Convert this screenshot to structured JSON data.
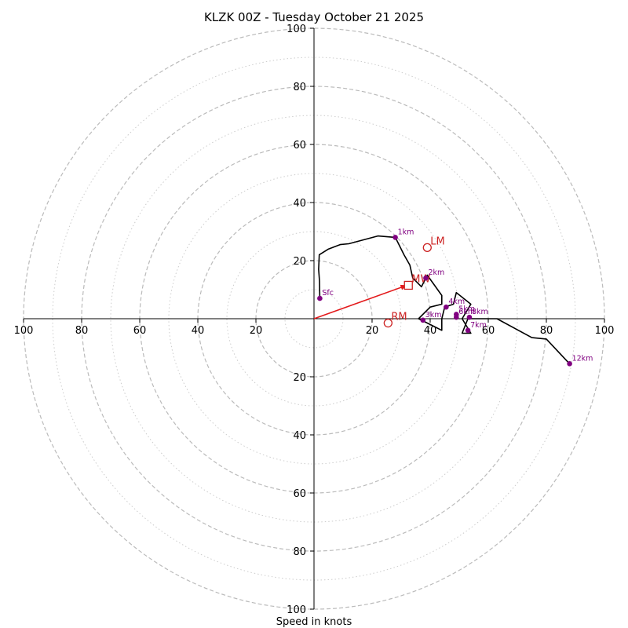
{
  "chart_data": {
    "type": "hodograph",
    "title": "KLZK 00Z - Tuesday October 21 2025",
    "xlabel": "Speed in knots",
    "units": "knots",
    "axis_range": [
      -100,
      100
    ],
    "x_tick_labels": [
      "100",
      "80",
      "60",
      "40",
      "20",
      "20",
      "40",
      "60",
      "80",
      "100"
    ],
    "x_tick_values": [
      -100,
      -80,
      -60,
      -40,
      -20,
      20,
      40,
      60,
      80,
      100
    ],
    "y_tick_labels": [
      "100",
      "80",
      "60",
      "40",
      "20",
      "20",
      "40",
      "60",
      "80",
      "100"
    ],
    "y_tick_values": [
      100,
      80,
      60,
      40,
      20,
      -20,
      -40,
      -60,
      -80,
      -100
    ],
    "rings_major": [
      20,
      40,
      60,
      80,
      100
    ],
    "rings_minor": [
      10,
      30,
      50,
      70,
      90
    ],
    "colors": {
      "trace": "#000000",
      "height_marker": "#800080",
      "motion": "#cc2222",
      "grid": "#bbbbbb",
      "shear_vector": "#e31a1c"
    },
    "trace": [
      [
        2,
        7
      ],
      [
        1.9,
        13
      ],
      [
        1.6,
        17
      ],
      [
        1.8,
        22
      ],
      [
        5,
        24
      ],
      [
        9,
        25.5
      ],
      [
        12,
        25.8
      ],
      [
        22,
        28.5
      ],
      [
        28,
        28
      ],
      [
        31,
        22
      ],
      [
        33,
        18.5
      ],
      [
        34,
        14
      ],
      [
        37,
        11
      ],
      [
        39,
        15
      ],
      [
        44,
        8
      ],
      [
        44,
        5
      ],
      [
        40,
        4
      ],
      [
        36,
        0
      ],
      [
        40,
        -2
      ],
      [
        44,
        -4
      ],
      [
        44,
        0
      ],
      [
        45,
        4
      ],
      [
        48,
        5
      ],
      [
        49,
        9
      ],
      [
        54,
        5
      ],
      [
        51,
        0
      ],
      [
        54,
        -5
      ],
      [
        51,
        -5
      ],
      [
        53,
        0
      ],
      [
        57,
        0
      ],
      [
        63,
        0
      ],
      [
        75,
        -6.5
      ],
      [
        80,
        -7
      ],
      [
        88,
        -15.5
      ]
    ],
    "height_markers": [
      {
        "label": "Sfc",
        "u": 2,
        "v": 7
      },
      {
        "label": "1km",
        "u": 28,
        "v": 28
      },
      {
        "label": "2km",
        "u": 38.5,
        "v": 14
      },
      {
        "label": "3km",
        "u": 37.5,
        "v": -0.5
      },
      {
        "label": "4km",
        "u": 45.5,
        "v": 4
      },
      {
        "label": "5km",
        "u": 49,
        "v": 1.5
      },
      {
        "label": "6km",
        "u": 49,
        "v": 0.5
      },
      {
        "label": "7km",
        "u": 53,
        "v": -4
      },
      {
        "label": "8km",
        "u": 53.5,
        "v": 0.5
      },
      {
        "label": "12km",
        "u": 88,
        "v": -15.5
      }
    ],
    "storm_motion": [
      {
        "label": "RM",
        "u": 25.5,
        "v": -1.5,
        "marker": "circle"
      },
      {
        "label": "LM",
        "u": 39,
        "v": 24.5,
        "marker": "circle"
      },
      {
        "label": "MW",
        "u": 32.5,
        "v": 11.5,
        "marker": "square"
      }
    ],
    "shear_vector": {
      "from": [
        0,
        0
      ],
      "to": [
        32,
        11.5
      ]
    }
  }
}
